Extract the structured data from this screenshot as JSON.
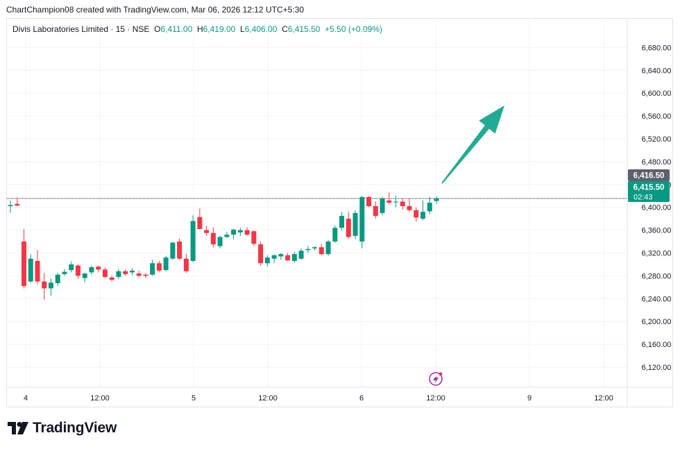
{
  "credit": "ChartChampion08 created with TradingView.com, Mar 06, 2026 12:12 UTC+5:30",
  "legend": {
    "symbol": "Divis Laboratories Limited · 15 · NSE",
    "o_key": "O",
    "o_val": "6,411.00",
    "h_key": "H",
    "h_val": "6,419.00",
    "l_key": "L",
    "l_val": "6,406.00",
    "c_key": "C",
    "c_val": "6,415.50",
    "change": "+5.50 (+0.09%)"
  },
  "logo_text": "TradingView",
  "colors": {
    "up": "#089981",
    "down": "#f23645",
    "arrow": "#22ab94",
    "price_line": "#131722"
  },
  "price_tags": {
    "top": "6,416.50",
    "last": "6,415.50",
    "countdown": "02:43"
  },
  "chart_data": {
    "type": "candlestick",
    "title": "",
    "ylim": [
      6100,
      6690
    ],
    "y_ticks": [
      "6,120.00",
      "6,160.00",
      "6,200.00",
      "6,240.00",
      "6,280.00",
      "6,320.00",
      "6,360.00",
      "6,400.00",
      "6,440.00",
      "6,480.00",
      "6,520.00",
      "6,560.00",
      "6,600.00",
      "6,640.00",
      "6,680.00"
    ],
    "x_ticks": [
      "4",
      "12:00",
      "5",
      "12:00",
      "6",
      "12:00",
      "9",
      "12:00"
    ],
    "grid": true,
    "last_price": 6415.5,
    "candles": [
      {
        "o": 6402,
        "h": 6412,
        "l": 6390,
        "c": 6404
      },
      {
        "o": 6406,
        "h": 6418,
        "l": 6402,
        "c": 6403
      },
      {
        "o": 6340,
        "h": 6362,
        "l": 6258,
        "c": 6262
      },
      {
        "o": 6270,
        "h": 6318,
        "l": 6268,
        "c": 6310
      },
      {
        "o": 6306,
        "h": 6325,
        "l": 6265,
        "c": 6270
      },
      {
        "o": 6270,
        "h": 6285,
        "l": 6238,
        "c": 6258
      },
      {
        "o": 6258,
        "h": 6275,
        "l": 6245,
        "c": 6268
      },
      {
        "o": 6267,
        "h": 6285,
        "l": 6262,
        "c": 6282
      },
      {
        "o": 6283,
        "h": 6292,
        "l": 6280,
        "c": 6287
      },
      {
        "o": 6290,
        "h": 6305,
        "l": 6286,
        "c": 6300
      },
      {
        "o": 6298,
        "h": 6300,
        "l": 6275,
        "c": 6280
      },
      {
        "o": 6276,
        "h": 6285,
        "l": 6268,
        "c": 6284
      },
      {
        "o": 6286,
        "h": 6298,
        "l": 6282,
        "c": 6295
      },
      {
        "o": 6296,
        "h": 6298,
        "l": 6286,
        "c": 6291
      },
      {
        "o": 6291,
        "h": 6295,
        "l": 6276,
        "c": 6278
      },
      {
        "o": 6277,
        "h": 6280,
        "l": 6270,
        "c": 6273
      },
      {
        "o": 6278,
        "h": 6292,
        "l": 6274,
        "c": 6288
      },
      {
        "o": 6288,
        "h": 6291,
        "l": 6280,
        "c": 6283
      },
      {
        "o": 6286,
        "h": 6293,
        "l": 6281,
        "c": 6289
      },
      {
        "o": 6284,
        "h": 6289,
        "l": 6277,
        "c": 6280
      },
      {
        "o": 6282,
        "h": 6285,
        "l": 6276,
        "c": 6280
      },
      {
        "o": 6282,
        "h": 6308,
        "l": 6280,
        "c": 6302
      },
      {
        "o": 6302,
        "h": 6306,
        "l": 6286,
        "c": 6289
      },
      {
        "o": 6290,
        "h": 6315,
        "l": 6288,
        "c": 6312
      },
      {
        "o": 6310,
        "h": 6340,
        "l": 6308,
        "c": 6338
      },
      {
        "o": 6340,
        "h": 6345,
        "l": 6308,
        "c": 6310
      },
      {
        "o": 6310,
        "h": 6318,
        "l": 6285,
        "c": 6288
      },
      {
        "o": 6306,
        "h": 6386,
        "l": 6304,
        "c": 6376
      },
      {
        "o": 6383,
        "h": 6398,
        "l": 6362,
        "c": 6362
      },
      {
        "o": 6360,
        "h": 6368,
        "l": 6350,
        "c": 6355
      },
      {
        "o": 6355,
        "h": 6365,
        "l": 6330,
        "c": 6335
      },
      {
        "o": 6332,
        "h": 6350,
        "l": 6328,
        "c": 6348
      },
      {
        "o": 6348,
        "h": 6357,
        "l": 6346,
        "c": 6352
      },
      {
        "o": 6352,
        "h": 6362,
        "l": 6344,
        "c": 6361
      },
      {
        "o": 6356,
        "h": 6364,
        "l": 6350,
        "c": 6360
      },
      {
        "o": 6360,
        "h": 6365,
        "l": 6350,
        "c": 6352
      },
      {
        "o": 6358,
        "h": 6360,
        "l": 6332,
        "c": 6336
      },
      {
        "o": 6335,
        "h": 6340,
        "l": 6298,
        "c": 6302
      },
      {
        "o": 6302,
        "h": 6316,
        "l": 6296,
        "c": 6312
      },
      {
        "o": 6310,
        "h": 6318,
        "l": 6302,
        "c": 6316
      },
      {
        "o": 6314,
        "h": 6320,
        "l": 6308,
        "c": 6318
      },
      {
        "o": 6316,
        "h": 6320,
        "l": 6306,
        "c": 6307
      },
      {
        "o": 6306,
        "h": 6322,
        "l": 6303,
        "c": 6318
      },
      {
        "o": 6310,
        "h": 6328,
        "l": 6308,
        "c": 6324
      },
      {
        "o": 6325,
        "h": 6332,
        "l": 6320,
        "c": 6327
      },
      {
        "o": 6328,
        "h": 6332,
        "l": 6324,
        "c": 6330
      },
      {
        "o": 6330,
        "h": 6336,
        "l": 6316,
        "c": 6318
      },
      {
        "o": 6318,
        "h": 6343,
        "l": 6315,
        "c": 6340
      },
      {
        "o": 6340,
        "h": 6368,
        "l": 6338,
        "c": 6364
      },
      {
        "o": 6364,
        "h": 6392,
        "l": 6360,
        "c": 6385
      },
      {
        "o": 6380,
        "h": 6392,
        "l": 6345,
        "c": 6348
      },
      {
        "o": 6350,
        "h": 6395,
        "l": 6344,
        "c": 6390
      },
      {
        "o": 6340,
        "h": 6420,
        "l": 6328,
        "c": 6418
      },
      {
        "o": 6418,
        "h": 6420,
        "l": 6400,
        "c": 6402
      },
      {
        "o": 6402,
        "h": 6410,
        "l": 6380,
        "c": 6385
      },
      {
        "o": 6390,
        "h": 6418,
        "l": 6386,
        "c": 6415
      },
      {
        "o": 6412,
        "h": 6426,
        "l": 6405,
        "c": 6408
      },
      {
        "o": 6410,
        "h": 6420,
        "l": 6400,
        "c": 6410
      },
      {
        "o": 6410,
        "h": 6416,
        "l": 6396,
        "c": 6402
      },
      {
        "o": 6402,
        "h": 6415,
        "l": 6392,
        "c": 6395
      },
      {
        "o": 6395,
        "h": 6400,
        "l": 6375,
        "c": 6382
      },
      {
        "o": 6380,
        "h": 6412,
        "l": 6377,
        "c": 6392
      },
      {
        "o": 6393,
        "h": 6418,
        "l": 6388,
        "c": 6408
      },
      {
        "o": 6411,
        "h": 6419,
        "l": 6406,
        "c": 6415.5
      }
    ]
  }
}
